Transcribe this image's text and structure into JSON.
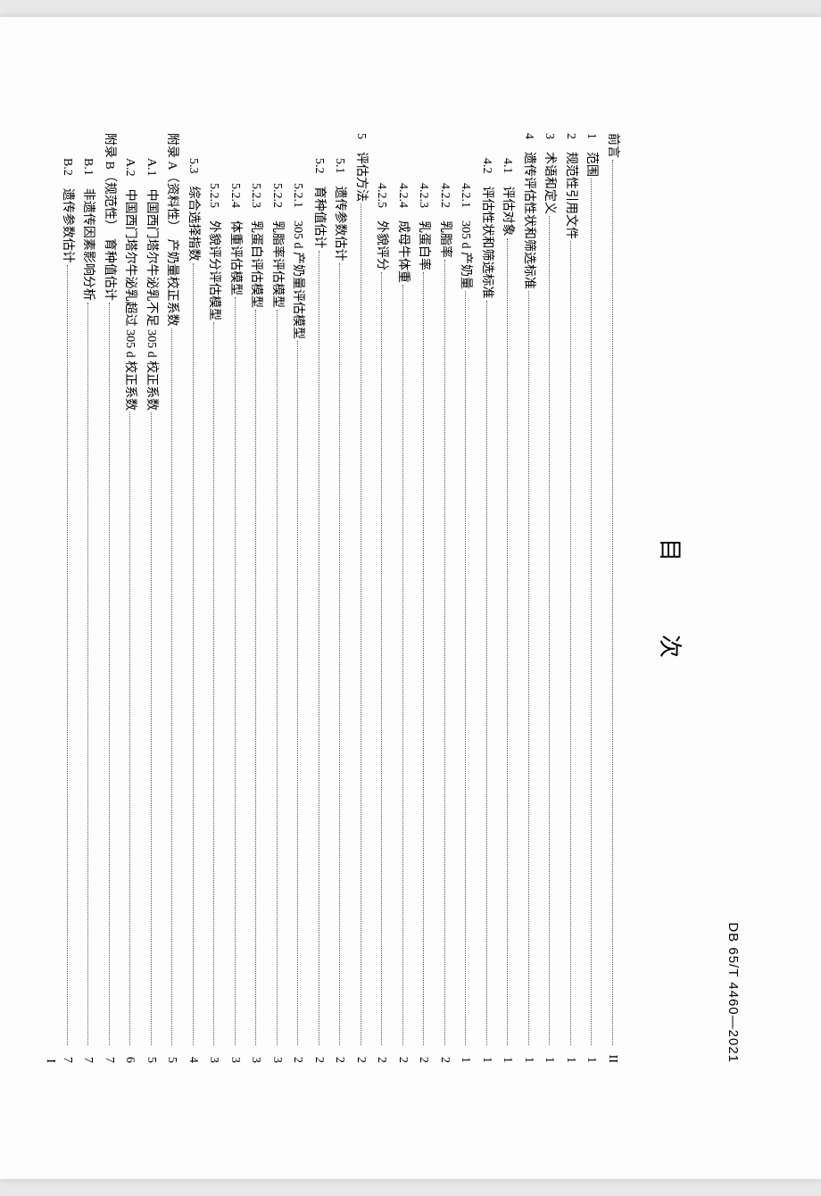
{
  "header": "DB 65/T 4460—2021",
  "title": "目　次",
  "pageNum": "I",
  "toc": [
    {
      "indent": 0,
      "label": "前言",
      "page": "II"
    },
    {
      "indent": 0,
      "label": "1　范围",
      "page": "1"
    },
    {
      "indent": 0,
      "label": "2　规范性引用文件",
      "page": "1"
    },
    {
      "indent": 0,
      "label": "3　术语和定义",
      "page": "1"
    },
    {
      "indent": 0,
      "label": "4　遗传评估性状和筛选标准",
      "page": "1"
    },
    {
      "indent": 1,
      "label": "4.1　评估对象",
      "page": "1"
    },
    {
      "indent": 1,
      "label": "4.2　评估性状和筛选标准",
      "page": "1"
    },
    {
      "indent": 2,
      "label": "4.2.1　305 d 产奶量",
      "page": "1"
    },
    {
      "indent": 2,
      "label": "4.2.2　乳脂率",
      "page": "2"
    },
    {
      "indent": 2,
      "label": "4.2.3　乳蛋白率",
      "page": "2"
    },
    {
      "indent": 2,
      "label": "4.2.4　成母牛体重",
      "page": "2"
    },
    {
      "indent": 2,
      "label": "4.2.5　外貌评分",
      "page": "2"
    },
    {
      "indent": 0,
      "label": "5　评估方法",
      "page": "2"
    },
    {
      "indent": 1,
      "label": "5.1　遗传参数估计",
      "page": "2"
    },
    {
      "indent": 1,
      "label": "5.2　育种值估计",
      "page": "2"
    },
    {
      "indent": 2,
      "label": "5.2.1　305 d 产奶量评估模型",
      "page": "2"
    },
    {
      "indent": 2,
      "label": "5.2.2　乳脂率评估模型",
      "page": "3"
    },
    {
      "indent": 2,
      "label": "5.2.3　乳蛋白评估模型",
      "page": "3"
    },
    {
      "indent": 2,
      "label": "5.2.4　体重评估模型",
      "page": "3"
    },
    {
      "indent": 2,
      "label": "5.2.5　外貌评分评估模型",
      "page": "3"
    },
    {
      "indent": 1,
      "label": "5.3　综合选择指数",
      "page": "4"
    },
    {
      "indent": 0,
      "label": "附录 A（资料性）　产奶量校正系数",
      "page": "5"
    },
    {
      "indent": 1,
      "label": "A.1　中国西门塔尔牛泌乳不足 305 d 校正系数",
      "page": "5"
    },
    {
      "indent": 1,
      "label": "A.2　中国西门塔尔牛泌乳超过 305 d 校正系数",
      "page": "6"
    },
    {
      "indent": 0,
      "label": "附录 B（规范性）　育种值估计",
      "page": "7"
    },
    {
      "indent": 1,
      "label": "B.1　非遗传因素影响分析",
      "page": "7"
    },
    {
      "indent": 1,
      "label": "B.2　遗传参数估计",
      "page": "7"
    }
  ]
}
